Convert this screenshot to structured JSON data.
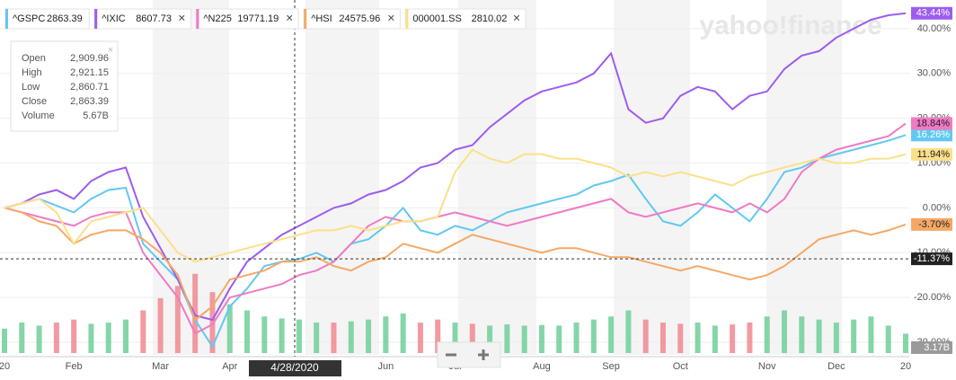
{
  "chart_data": {
    "type": "line",
    "watermark": "yahoo!finance",
    "categories": [
      "20",
      null,
      null,
      null,
      "Feb",
      null,
      null,
      null,
      null,
      "Mar",
      null,
      null,
      null,
      "Apr",
      null,
      null,
      null,
      null,
      null,
      null,
      null,
      null,
      "Jun",
      null,
      null,
      null,
      "Jul",
      null,
      null,
      null,
      null,
      "Aug",
      null,
      null,
      null,
      "Sep",
      null,
      null,
      null,
      "Oct",
      null,
      null,
      null,
      null,
      "Nov",
      null,
      null,
      null,
      "Dec",
      null,
      null,
      null,
      "20"
    ],
    "series": [
      {
        "name": "^GSPC",
        "legend_value": 2863.39,
        "color": "#62c8f2",
        "badge": {
          "value": 16.26,
          "label": "16.26%"
        },
        "values": [
          0,
          1,
          2,
          0.5,
          -1,
          2,
          4,
          4.5,
          -8,
          -12,
          -16,
          -25,
          -31,
          -22,
          -18,
          -13,
          -12,
          -11.4,
          -10,
          -12,
          -8,
          -7,
          -4,
          0,
          -5,
          -6,
          -4,
          -5,
          -3,
          -1,
          0,
          1,
          2,
          3,
          5,
          6,
          7.4,
          2,
          -3,
          -4,
          -1,
          3,
          0,
          -3,
          2,
          8,
          9,
          11,
          12,
          13,
          14,
          15,
          16.26
        ]
      },
      {
        "name": "^IXIC",
        "legend_value": 8607.73,
        "color": "#9d5cf0",
        "badge": {
          "value": 43.44,
          "label": "43.44%"
        },
        "values": [
          0,
          1,
          3,
          4,
          2,
          6,
          8,
          9,
          -2,
          -9,
          -16,
          -24,
          -25,
          -18,
          -12,
          -9,
          -6,
          -4,
          -2,
          0,
          1,
          3,
          4,
          6,
          9,
          10,
          13,
          14,
          18,
          21,
          24,
          26,
          27,
          28,
          30,
          34.5,
          22,
          19,
          20,
          25,
          27,
          26,
          22,
          25,
          26,
          31,
          34,
          35,
          38,
          40,
          42,
          43,
          43.44
        ]
      },
      {
        "name": "^N225",
        "legend_value": 19771.19,
        "color": "#f07ac4",
        "badge": {
          "value": 18.84,
          "label": "18.84%"
        },
        "values": [
          0,
          -1,
          -2,
          -3,
          -4,
          -2,
          -1,
          -1,
          -10,
          -15,
          -20,
          -28,
          -26,
          -20,
          -19,
          -18,
          -17,
          -15,
          -14,
          -12,
          -8,
          -4,
          -2,
          -3,
          -3,
          -2,
          -1,
          -2,
          -3,
          -4,
          -3,
          -2,
          -1,
          0,
          1,
          2,
          -1,
          -2,
          -1,
          0,
          1,
          0,
          -1,
          1,
          -1,
          2,
          8,
          11,
          13,
          14,
          15,
          16,
          18.84
        ]
      },
      {
        "name": "^HSI",
        "legend_value": 24575.96,
        "color": "#f5a865",
        "badge": {
          "value": -3.7,
          "label": "-3.70%"
        },
        "values": [
          0,
          -1,
          -3,
          -4,
          -8,
          -6,
          -5,
          -5,
          -7,
          -10,
          -15,
          -25,
          -22,
          -16,
          -15,
          -14,
          -12,
          -12,
          -11,
          -13,
          -14,
          -12,
          -11,
          -8,
          -9,
          -10,
          -8,
          -6,
          -7,
          -8,
          -9,
          -10,
          -9,
          -9,
          -10,
          -11,
          -11,
          -12,
          -13,
          -14,
          -13,
          -14,
          -15,
          -16,
          -15,
          -13,
          -10,
          -7,
          -6,
          -5,
          -6,
          -5,
          -3.7
        ]
      },
      {
        "name": "000001.SS",
        "legend_value": 2810.02,
        "color": "#fbe08a",
        "badge": {
          "value": 11.94,
          "label": "11.94%"
        },
        "values": [
          0,
          1,
          2,
          -1,
          -8,
          -3,
          -2,
          -1,
          0,
          -5,
          -10,
          -12,
          -11,
          -10,
          -9,
          -8,
          -7,
          -6,
          -5,
          -5,
          -4,
          -5,
          -4,
          -3,
          -3,
          -2,
          8,
          13,
          11,
          10,
          12,
          12,
          11,
          11,
          10,
          9,
          7,
          8,
          7,
          8,
          7,
          6,
          5,
          7,
          8,
          9,
          10,
          11,
          10,
          10,
          11,
          11,
          11.94
        ]
      }
    ],
    "ylim": [
      -32.4,
      45.4
    ],
    "yticks": [
      {
        "value": -30,
        "label": "-30.00%"
      },
      {
        "value": -20,
        "label": "-20.00%"
      },
      {
        "value": -10,
        "label": "-10.00%"
      },
      {
        "value": 0,
        "label": "0.00%"
      },
      {
        "value": 10,
        "label": "10.00%"
      },
      {
        "value": 20,
        "label": "20.00%"
      },
      {
        "value": 30,
        "label": "30.00%"
      },
      {
        "value": 40,
        "label": "40.00%"
      }
    ],
    "volume": {
      "up_color": "#6fcf9a",
      "down_color": "#f08890",
      "ylim": [
        0,
        14
      ],
      "badge": {
        "value": 3.17,
        "label": "3.17B"
      },
      "values": [
        4,
        5,
        4.5,
        5,
        5.5,
        4.8,
        5,
        5.5,
        7,
        9,
        11,
        13,
        10,
        8,
        7,
        6,
        5.67,
        5.5,
        5,
        5,
        5.2,
        5.5,
        6,
        6.5,
        5,
        5.5,
        5,
        4.8,
        4.5,
        4.7,
        4.5,
        4.6,
        4.5,
        5,
        5.5,
        6,
        7,
        5.5,
        5,
        4.8,
        5,
        4.5,
        4.7,
        5,
        6,
        7,
        6,
        5.5,
        5,
        5.5,
        6,
        4.5,
        3.17
      ]
    },
    "crosshair": {
      "date_label": "4/28/2020",
      "value": -11.37,
      "label": "-11.37%"
    },
    "tooltip": {
      "rows": [
        {
          "label": "Open",
          "value": "2,909.96"
        },
        {
          "label": "High",
          "value": "2,921.15"
        },
        {
          "label": "Low",
          "value": "2,860.71"
        },
        {
          "label": "Close",
          "value": "2,863.39"
        },
        {
          "label": "Volume",
          "value": "5.67B"
        }
      ]
    }
  }
}
